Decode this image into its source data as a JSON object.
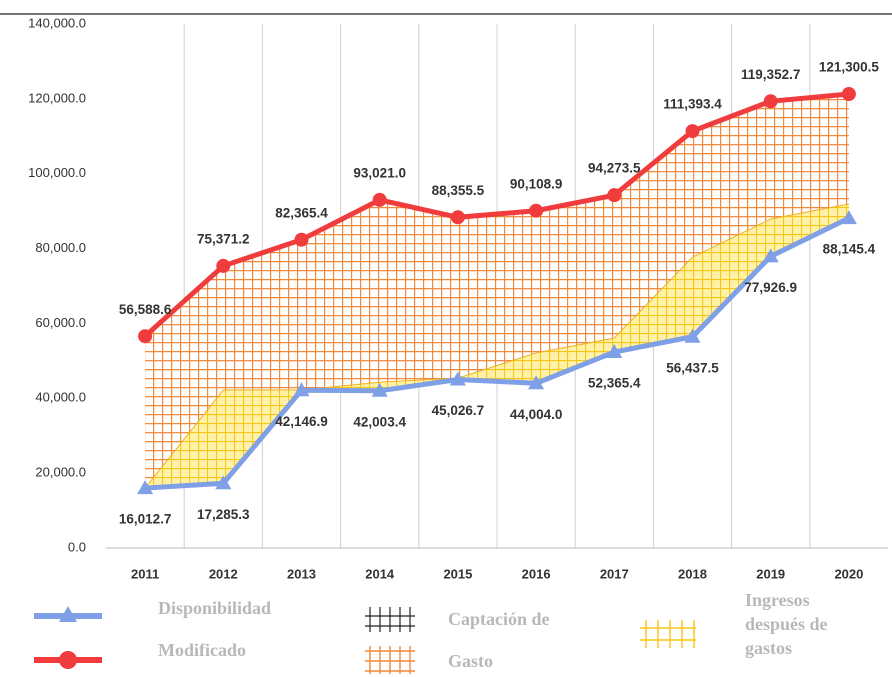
{
  "chart_data": {
    "type": "line",
    "categories": [
      "2011",
      "2012",
      "2013",
      "2014",
      "2015",
      "2016",
      "2017",
      "2018",
      "2019",
      "2020"
    ],
    "ylim": [
      0,
      140000
    ],
    "yticks": [
      {
        "value": 0,
        "label": "0.0"
      },
      {
        "value": 20000,
        "label": "20,000.0"
      },
      {
        "value": 40000,
        "label": "40,000.0"
      },
      {
        "value": 60000,
        "label": "60,000.0"
      },
      {
        "value": 80000,
        "label": "80,000.0"
      },
      {
        "value": 100000,
        "label": "100,000.0"
      },
      {
        "value": 120000,
        "label": "120,000.0"
      },
      {
        "value": 140000,
        "label": "140,000.0"
      }
    ],
    "grid": true,
    "series": [
      {
        "name": "Disponibilidad",
        "color": "#7f9fe6",
        "marker": "triangle",
        "values": [
          16012.7,
          17285.3,
          42146.9,
          42003.4,
          45026.7,
          44004.0,
          52365.4,
          56437.5,
          77926.9,
          88145.4
        ],
        "value_labels": [
          "16,012.7",
          "17,285.3",
          "42,146.9",
          "42,003.4",
          "45,026.7",
          "44,004.0",
          "52,365.4",
          "56,437.5",
          "77,926.9",
          "88,145.4"
        ]
      },
      {
        "name": "Modificado",
        "color": "#f03c3c",
        "marker": "circle",
        "values": [
          56588.6,
          75371.2,
          82365.4,
          93021.0,
          88355.5,
          90108.9,
          94273.5,
          111393.4,
          119352.7,
          121300.5
        ],
        "value_labels": [
          "56,588.6",
          "75,371.2",
          "82,365.4",
          "93,021.0",
          "88,355.5",
          "90,108.9",
          "94,273.5",
          "111,393.4",
          "119,352.7",
          "121,300.5"
        ]
      },
      {
        "name": "Captación de Gasto",
        "color": "#f08a3c"
      },
      {
        "name": "Ingresos después de gastos",
        "color": "#f5c518",
        "values": [
          16000,
          42200,
          42200,
          44300,
          45400,
          52100,
          56100,
          77700,
          87900,
          91900
        ]
      }
    ]
  }
}
